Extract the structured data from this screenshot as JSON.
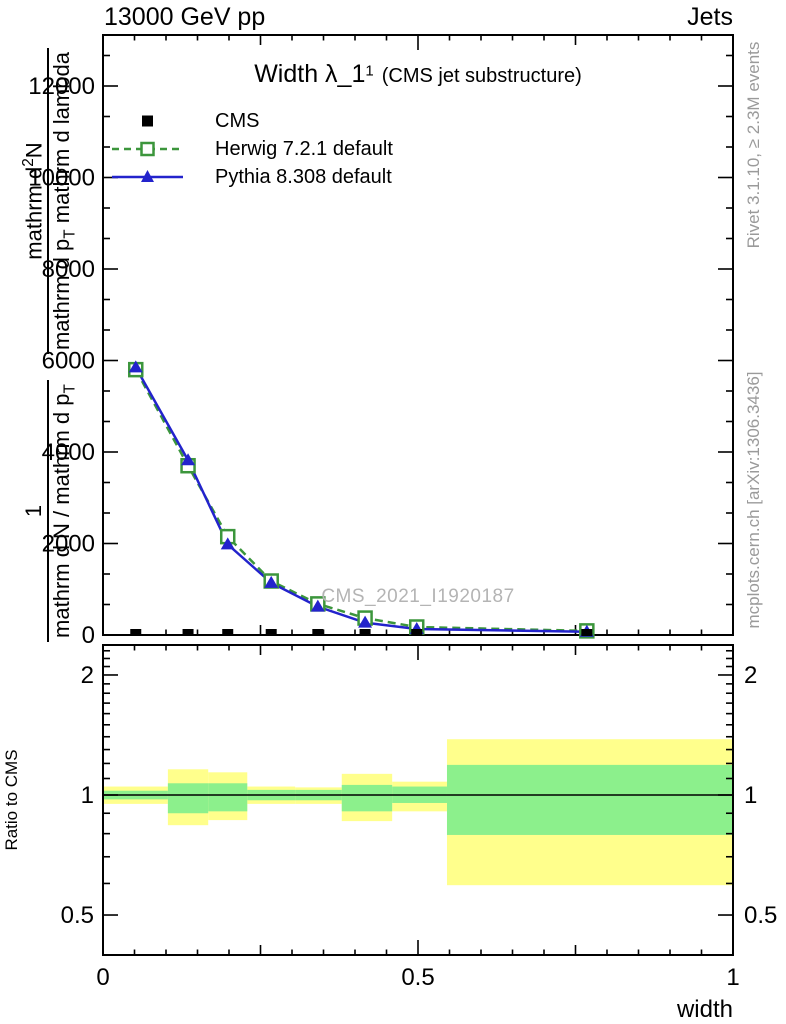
{
  "header": {
    "left": "13000 GeV pp",
    "right": "Jets"
  },
  "title": {
    "main": "Width λ_1",
    "sup": "1",
    "paren": "(CMS jet substructure)"
  },
  "legend": {
    "items": [
      {
        "label": "CMS"
      },
      {
        "label": "Herwig 7.2.1 default"
      },
      {
        "label": "Pythia 8.308 default"
      }
    ]
  },
  "watermark": "CMS_2021_I1920187",
  "side_notes": {
    "rivet": "Rivet 3.1.10, ≥ 2.3M events",
    "mcplots": "mcplots.cern.ch [arXiv:1306.3436]"
  },
  "axes": {
    "x": {
      "label": "width"
    },
    "y": {
      "frac1": {
        "num": "1",
        "den_main": "mathrm d N / mathrm d p",
        "den_sub": "T"
      },
      "frac2": {
        "num_pre": "mathrm d",
        "num_sup": "2",
        "num_post": "N",
        "den_pre": "mathrm d p",
        "den_sub": "T",
        "den_post": " mathrm d lambda"
      }
    },
    "ratio": {
      "label": "Ratio to CMS"
    }
  },
  "chart_data": {
    "type": "line",
    "title": "Width λ_1^1 (CMS jet substructure)",
    "xlabel": "width",
    "ylabel": "1 / (mathrm d N / mathrm d p_T) · mathrm d^2 N / (mathrm d p_T mathrm d lambda)",
    "ratio_label": "Ratio to CMS",
    "xlim": [
      0,
      1
    ],
    "ylim": [
      0,
      13100
    ],
    "ratio_ylim": [
      0.4,
      2.38
    ],
    "grid": false,
    "legend_position": "top-left-inside",
    "x_major_ticks": [
      0,
      0.5,
      1
    ],
    "x_mid_ticks": [
      0.25,
      0.75
    ],
    "x_minor_step": 0.05,
    "y_major_ticks": [
      0,
      2000,
      4000,
      6000,
      8000,
      10000,
      12000
    ],
    "y_minor_divisions": 3,
    "ratio_major_ticks": [
      0.5,
      1,
      2
    ],
    "ratio_minor_ticks": [
      0.4,
      0.6,
      0.7,
      0.8,
      0.9,
      1.1,
      1.2,
      1.3,
      1.4,
      1.5,
      1.6,
      1.7,
      1.8,
      1.9,
      2.1,
      2.2,
      2.3
    ],
    "bin_edges": [
      0,
      0.103,
      0.167,
      0.229,
      0.305,
      0.379,
      0.459,
      0.546,
      1.0
    ],
    "bin_centers": [
      0.052,
      0.135,
      0.198,
      0.267,
      0.341,
      0.416,
      0.498,
      0.768
    ],
    "series": [
      {
        "name": "CMS",
        "kind": "data",
        "color": "#000000",
        "marker": "filled-square",
        "values": [
          0,
          0,
          0,
          0,
          0,
          0,
          0,
          0
        ]
      },
      {
        "name": "Herwig 7.2.1 default",
        "kind": "mc",
        "color": "#3c963c",
        "line": "dashed",
        "marker": "open-square",
        "values": [
          5800,
          3700,
          2150,
          1180,
          680,
          370,
          175,
          90
        ]
      },
      {
        "name": "Pythia 8.308 default",
        "kind": "mc",
        "color": "#2323cc",
        "line": "solid",
        "marker": "filled-triangle",
        "values": [
          5850,
          3820,
          1980,
          1140,
          620,
          270,
          130,
          70
        ]
      }
    ],
    "ratio_bands": [
      {
        "x0": 0.0,
        "x1": 0.103,
        "yellow": [
          0.95,
          1.05
        ],
        "green": [
          0.975,
          1.025
        ]
      },
      {
        "x0": 0.103,
        "x1": 0.167,
        "yellow": [
          0.84,
          1.16
        ],
        "green": [
          0.9,
          1.07
        ]
      },
      {
        "x0": 0.167,
        "x1": 0.229,
        "yellow": [
          0.865,
          1.14
        ],
        "green": [
          0.91,
          1.07
        ]
      },
      {
        "x0": 0.229,
        "x1": 0.305,
        "yellow": [
          0.95,
          1.05
        ],
        "green": [
          0.97,
          1.03
        ]
      },
      {
        "x0": 0.305,
        "x1": 0.379,
        "yellow": [
          0.95,
          1.045
        ],
        "green": [
          0.97,
          1.03
        ]
      },
      {
        "x0": 0.379,
        "x1": 0.459,
        "yellow": [
          0.86,
          1.13
        ],
        "green": [
          0.91,
          1.06
        ]
      },
      {
        "x0": 0.459,
        "x1": 0.546,
        "yellow": [
          0.91,
          1.08
        ],
        "green": [
          0.955,
          1.05
        ]
      },
      {
        "x0": 0.546,
        "x1": 1.0,
        "yellow": [
          0.594,
          1.38
        ],
        "green": [
          0.794,
          1.19
        ]
      }
    ],
    "band_colors": {
      "yellow": "#ffff8c",
      "green": "#8cf08c"
    },
    "ratio_reference": 1
  }
}
